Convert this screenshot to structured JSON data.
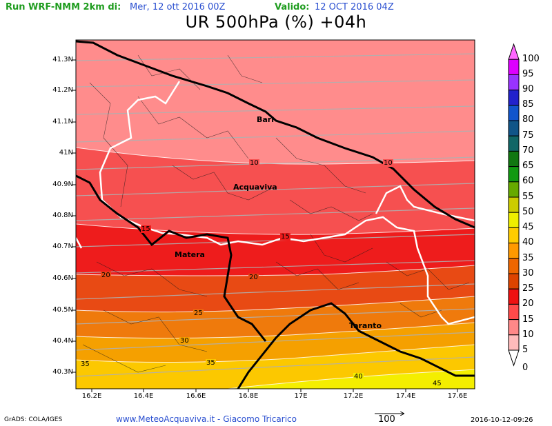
{
  "header": {
    "run_label": "Run WRF-NMM 2km di:",
    "run_date": "Mer, 12 ott 2016 00Z",
    "valid_label": "Valido:",
    "valid_date": "12 OCT 2016 04Z"
  },
  "title": "UR 500hPa (%) +04h",
  "axes": {
    "lat_labels": [
      "41.3N",
      "41.2N",
      "41.1N",
      "41N",
      "40.9N",
      "40.8N",
      "40.7N",
      "40.6N",
      "40.5N",
      "40.4N",
      "40.3N"
    ],
    "lon_labels": [
      "16.2E",
      "16.4E",
      "16.6E",
      "16.8E",
      "17E",
      "17.2E",
      "17.4E",
      "17.6E"
    ]
  },
  "colorbar": {
    "labels": [
      "100",
      "95",
      "90",
      "85",
      "80",
      "75",
      "70",
      "65",
      "60",
      "55",
      "50",
      "45",
      "40",
      "35",
      "30",
      "25",
      "20",
      "15",
      "10",
      "5",
      "0"
    ],
    "colors": [
      "#ff66ff",
      "#dd00ff",
      "#9933ff",
      "#2222cc",
      "#1155cc",
      "#115588",
      "#116666",
      "#117711",
      "#119911",
      "#66aa00",
      "#cccc00",
      "#eeee00",
      "#ffcc00",
      "#ff9900",
      "#ee6600",
      "#dd4400",
      "#ee1111",
      "#ff4a4a",
      "#ff8888",
      "#ffbbbb",
      "#ffffff"
    ]
  },
  "map": {
    "bands": [
      {
        "level": "5-10",
        "color": "#ff8c8c"
      },
      {
        "level": "10-15",
        "color": "#f65050"
      },
      {
        "level": "15-20",
        "color": "#ee1c1c"
      },
      {
        "level": "20-25",
        "color": "#e84a14"
      },
      {
        "level": "25-30",
        "color": "#ef7a0c"
      },
      {
        "level": "30-35",
        "color": "#f5a000"
      },
      {
        "level": "35-40",
        "color": "#fcc800"
      },
      {
        "level": "40-45",
        "color": "#f4ee00"
      }
    ],
    "contour_labels": [
      "10",
      "10",
      "15",
      "15",
      "20",
      "20",
      "25",
      "30",
      "35",
      "35",
      "40",
      "45"
    ],
    "cities": [
      "Bari",
      "Acquaviva",
      "Matera",
      "Taranto"
    ]
  },
  "footer": {
    "grads": "GrADS: COLA/IGES",
    "url": "www.MeteoAcquaviva.it  -  Giacomo Tricarico",
    "vector_label": "100",
    "timestamp": "2016-10-12-09:26"
  }
}
